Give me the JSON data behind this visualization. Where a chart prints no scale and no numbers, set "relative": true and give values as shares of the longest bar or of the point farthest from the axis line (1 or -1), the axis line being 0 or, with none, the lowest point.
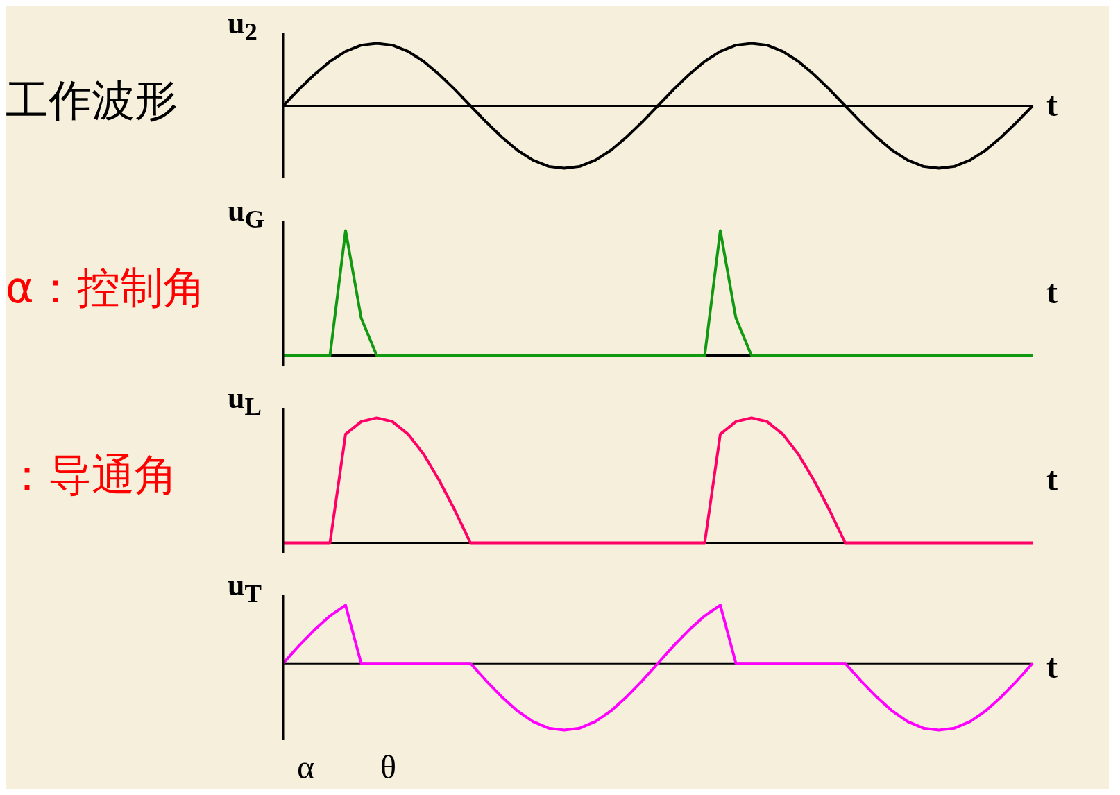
{
  "chart_data": [
    {
      "type": "line",
      "relative": true,
      "ylabel": "u$_{2}$",
      "xlabel": "t",
      "marker": "none",
      "line_style": "solid",
      "annotations": [
        "工作波形"
      ],
      "categories": [
        null,
        null,
        null,
        null,
        null,
        null,
        null,
        null,
        null,
        null,
        null,
        null,
        null,
        null,
        null,
        null,
        null,
        null,
        null,
        null,
        null,
        null,
        null,
        null,
        null,
        null,
        null,
        null,
        null,
        null,
        null,
        null,
        null,
        null,
        null,
        null,
        null,
        null,
        null,
        null,
        null,
        null,
        null,
        null,
        null,
        null,
        null,
        null,
        null
      ],
      "series": [
        {
          "color": "#000000",
          "values": [
            0,
            0.26,
            0.5,
            0.71,
            0.87,
            0.97,
            1,
            0.97,
            0.87,
            0.71,
            0.5,
            0.26,
            0,
            -0.26,
            -0.5,
            -0.71,
            -0.87,
            -0.97,
            -1,
            -0.97,
            -0.87,
            -0.71,
            -0.5,
            -0.26,
            0,
            0.26,
            0.5,
            0.71,
            0.87,
            0.97,
            1,
            0.97,
            0.87,
            0.71,
            0.5,
            0.26,
            0,
            -0.26,
            -0.5,
            -0.71,
            -0.87,
            -0.97,
            -1,
            -0.97,
            -0.87,
            -0.71,
            -0.5,
            -0.26,
            0
          ]
        }
      ]
    },
    {
      "type": "line",
      "relative": true,
      "ylabel": "u$_{G}$",
      "xlabel": "t",
      "marker": "none",
      "line_style": "solid",
      "annotations": [
        "α：控制角"
      ],
      "categories": [
        null,
        null,
        null,
        null,
        null,
        null,
        null,
        null,
        null,
        null,
        null,
        null,
        null,
        null,
        null,
        null,
        null,
        null,
        null,
        null,
        null,
        null,
        null,
        null,
        null,
        null,
        null,
        null,
        null,
        null,
        null,
        null,
        null,
        null,
        null,
        null,
        null,
        null,
        null,
        null,
        null,
        null,
        null,
        null,
        null,
        null,
        null,
        null,
        null
      ],
      "series": [
        {
          "color": "#119911",
          "values": [
            0,
            0,
            0,
            0,
            1,
            0.3,
            0,
            0,
            0,
            0,
            0,
            0,
            0,
            0,
            0,
            0,
            0,
            0,
            0,
            0,
            0,
            0,
            0,
            0,
            0,
            0,
            0,
            0,
            1,
            0.3,
            0,
            0,
            0,
            0,
            0,
            0,
            0,
            0,
            0,
            0,
            0,
            0,
            0,
            0,
            0,
            0,
            0,
            0,
            0
          ]
        }
      ]
    },
    {
      "type": "line",
      "relative": true,
      "ylabel": "u$_{L}$",
      "xlabel": "t",
      "marker": "none",
      "line_style": "solid",
      "annotations": [
        "：导通角"
      ],
      "categories": [
        null,
        null,
        null,
        null,
        null,
        null,
        null,
        null,
        null,
        null,
        null,
        null,
        null,
        null,
        null,
        null,
        null,
        null,
        null,
        null,
        null,
        null,
        null,
        null,
        null,
        null,
        null,
        null,
        null,
        null,
        null,
        null,
        null,
        null,
        null,
        null,
        null,
        null,
        null,
        null,
        null,
        null,
        null,
        null,
        null,
        null,
        null,
        null,
        null
      ],
      "series": [
        {
          "color": "#ff0066",
          "values": [
            0,
            0,
            0,
            0,
            0.87,
            0.97,
            1,
            0.97,
            0.87,
            0.71,
            0.5,
            0.26,
            0,
            0,
            0,
            0,
            0,
            0,
            0,
            0,
            0,
            0,
            0,
            0,
            0,
            0,
            0,
            0,
            0.87,
            0.97,
            1,
            0.97,
            0.87,
            0.71,
            0.5,
            0.26,
            0,
            0,
            0,
            0,
            0,
            0,
            0,
            0,
            0,
            0,
            0,
            0,
            0
          ]
        }
      ]
    },
    {
      "type": "line",
      "relative": true,
      "ylabel": "u$_{T}$",
      "xlabel": "t",
      "marker": "none",
      "line_style": "solid",
      "annotations": [
        "α",
        "θ"
      ],
      "categories": [
        null,
        null,
        null,
        null,
        null,
        null,
        null,
        null,
        null,
        null,
        null,
        null,
        null,
        null,
        null,
        null,
        null,
        null,
        null,
        null,
        null,
        null,
        null,
        null,
        null,
        null,
        null,
        null,
        null,
        null,
        null,
        null,
        null,
        null,
        null,
        null,
        null,
        null,
        null,
        null,
        null,
        null,
        null,
        null,
        null,
        null,
        null,
        null,
        null
      ],
      "series": [
        {
          "color": "#ff00ff",
          "values": [
            0,
            0.26,
            0.5,
            0.71,
            0.87,
            0,
            0,
            0,
            0,
            0,
            0,
            0,
            0,
            -0.26,
            -0.5,
            -0.71,
            -0.87,
            -0.97,
            -1,
            -0.97,
            -0.87,
            -0.71,
            -0.5,
            -0.26,
            0,
            0.26,
            0.5,
            0.71,
            0.87,
            0,
            0,
            0,
            0,
            0,
            0,
            0,
            0,
            -0.26,
            -0.5,
            -0.71,
            -0.87,
            -0.97,
            -1,
            -0.97,
            -0.87,
            -0.71,
            -0.5,
            -0.26,
            0
          ]
        }
      ]
    }
  ]
}
